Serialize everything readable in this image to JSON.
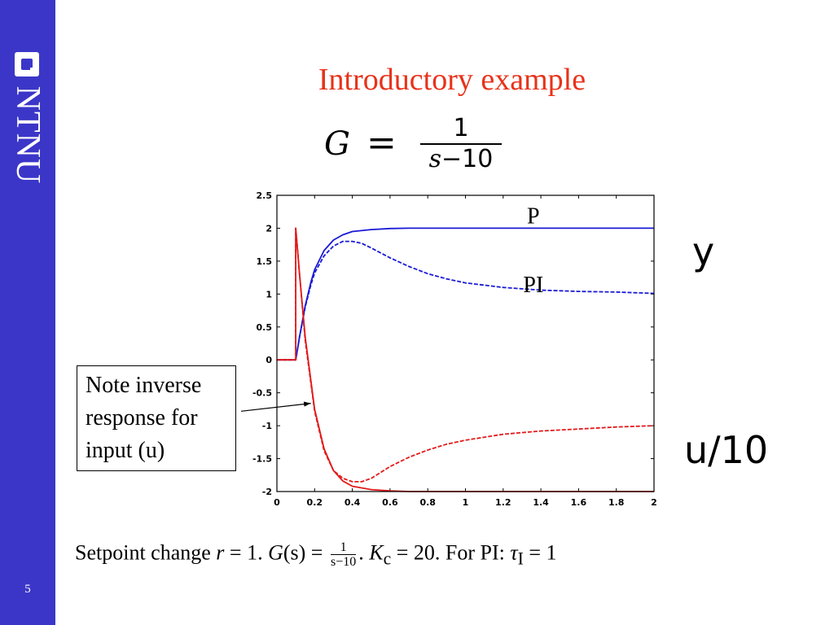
{
  "slide": {
    "title": "Introductory example",
    "page_number": "5",
    "logo_text": "NTNU",
    "formula": {
      "lhs": "G",
      "eq": "=",
      "numerator": "1",
      "denominator_var": "s",
      "denominator_rest": "−10"
    },
    "y_label": "y",
    "u_label": "u/10",
    "note_lines": [
      "Note inverse",
      "response for",
      "input (u)"
    ],
    "caption": {
      "part1": "Setpoint change ",
      "r": "r",
      "part2": " = 1.   ",
      "gs": "G",
      "part3": "(s) = ",
      "frac_num": "1",
      "frac_den": "s−10",
      "part4": ". ",
      "kc": "K",
      "kc_sub": "c",
      "part5": " = 20.   For PI: ",
      "tau": "τ",
      "tau_sub": "I",
      "part6": " = 1"
    },
    "colors": {
      "sidebar": "#3b36c8",
      "title": "#e8321a",
      "y_curves": "#1a1ad6",
      "u_curves": "#e21a1a"
    }
  },
  "chart_data": {
    "type": "line",
    "xlim": [
      0,
      2
    ],
    "ylim": [
      -2,
      2.5
    ],
    "x_ticks": [
      "0",
      "0.2",
      "0.4",
      "0.6",
      "0.8",
      "1",
      "1.2",
      "1.4",
      "1.6",
      "1.8",
      "2"
    ],
    "y_ticks": [
      "-2",
      "-1.5",
      "-1",
      "-0.5",
      "0",
      "0.5",
      "1",
      "1.5",
      "2",
      "2.5"
    ],
    "grid": false,
    "series": [
      {
        "name": "P",
        "color": "#1a1ad6",
        "dash": false,
        "x": [
          0,
          0.1,
          0.12,
          0.15,
          0.18,
          0.2,
          0.25,
          0.3,
          0.35,
          0.4,
          0.5,
          0.6,
          0.7,
          0.8,
          1.0,
          1.2,
          1.4,
          1.6,
          1.8,
          2.0
        ],
        "y": [
          0,
          0,
          0.35,
          0.82,
          1.18,
          1.37,
          1.66,
          1.82,
          1.9,
          1.95,
          1.98,
          1.995,
          2.0,
          2.0,
          2.0,
          2.0,
          2.0,
          2.0,
          2.0,
          2.0
        ]
      },
      {
        "name": "PI",
        "color": "#1a1ad6",
        "dash": true,
        "x": [
          0,
          0.1,
          0.12,
          0.15,
          0.18,
          0.2,
          0.25,
          0.3,
          0.35,
          0.4,
          0.45,
          0.5,
          0.6,
          0.7,
          0.8,
          0.9,
          1.0,
          1.2,
          1.4,
          1.6,
          1.8,
          2.0
        ],
        "y": [
          0,
          0,
          0.35,
          0.8,
          1.14,
          1.32,
          1.58,
          1.73,
          1.8,
          1.8,
          1.77,
          1.7,
          1.55,
          1.42,
          1.31,
          1.23,
          1.17,
          1.1,
          1.06,
          1.04,
          1.03,
          1.01
        ]
      },
      {
        "name": "u/10 (P)",
        "color": "#e21a1a",
        "dash": false,
        "x": [
          0,
          0.1,
          0.1,
          0.12,
          0.15,
          0.2,
          0.25,
          0.3,
          0.35,
          0.4,
          0.5,
          0.6,
          0.7,
          0.8,
          1.0,
          1.2,
          1.4,
          1.6,
          1.8,
          2.0
        ],
        "y": [
          0,
          0,
          2.0,
          1.3,
          0.35,
          -0.75,
          -1.35,
          -1.68,
          -1.84,
          -1.92,
          -1.97,
          -1.99,
          -2.0,
          -2.0,
          -2.0,
          -2.0,
          -2.0,
          -2.0,
          -2.0,
          -2.0
        ]
      },
      {
        "name": "u/10 (PI)",
        "color": "#e21a1a",
        "dash": true,
        "x": [
          0,
          0.1,
          0.1,
          0.12,
          0.15,
          0.2,
          0.25,
          0.3,
          0.35,
          0.4,
          0.45,
          0.5,
          0.6,
          0.7,
          0.8,
          0.9,
          1.0,
          1.2,
          1.4,
          1.6,
          1.8,
          2.0
        ],
        "y": [
          0,
          0,
          2.0,
          1.3,
          0.3,
          -0.78,
          -1.38,
          -1.68,
          -1.8,
          -1.85,
          -1.85,
          -1.8,
          -1.62,
          -1.48,
          -1.37,
          -1.28,
          -1.22,
          -1.13,
          -1.08,
          -1.05,
          -1.02,
          -1.0
        ]
      }
    ],
    "annotations": [
      {
        "text": "P",
        "x": 1.36,
        "y": 2.2
      },
      {
        "text": "PI",
        "x": 1.36,
        "y": 1.15
      }
    ],
    "note_arrow": {
      "from": [
        -0.19,
        -0.78
      ],
      "to": [
        0.18,
        -0.66
      ]
    }
  }
}
